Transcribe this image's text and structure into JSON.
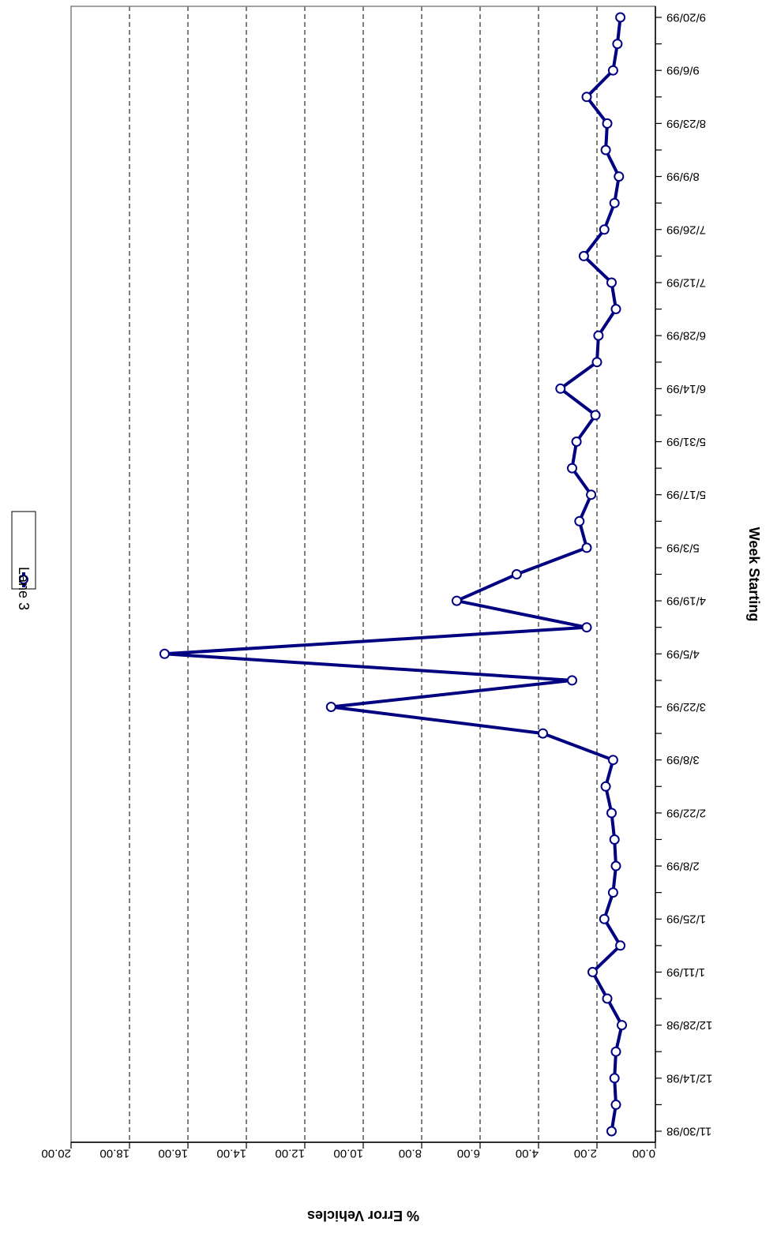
{
  "chart_data": {
    "type": "line",
    "title": "",
    "xlabel": "Week Starting",
    "ylabel": "% Error Vehicles",
    "ylim": [
      0,
      20
    ],
    "y_ticks": [
      "0.00",
      "2.00",
      "4.00",
      "6.00",
      "8.00",
      "10.00",
      "12.00",
      "14.00",
      "16.00",
      "18.00",
      "20.00"
    ],
    "x_tick_labels": [
      "11/30/98",
      "12/14/98",
      "12/28/98",
      "1/11/99",
      "1/25/99",
      "2/8/99",
      "2/22/99",
      "3/8/99",
      "3/22/99",
      "4/5/99",
      "4/19/99",
      "5/3/99",
      "5/17/99",
      "5/31/99",
      "6/14/99",
      "6/28/99",
      "7/12/99",
      "7/26/99",
      "8/9/99",
      "8/23/99",
      "9/6/99",
      "9/20/99"
    ],
    "grid": "dashed horizontal",
    "legend_position": "top",
    "orientation": "rotated 180 degrees",
    "series": [
      {
        "name": "Lane 3",
        "color": "#000080",
        "marker": "open-circle",
        "x": [
          "11/30/98",
          "12/7/98",
          "12/14/98",
          "12/21/98",
          "12/28/98",
          "1/4/99",
          "1/11/99",
          "1/18/99",
          "1/25/99",
          "2/1/99",
          "2/8/99",
          "2/15/99",
          "2/22/99",
          "3/1/99",
          "3/8/99",
          "3/15/99",
          "3/22/99",
          "3/29/99",
          "4/5/99",
          "4/12/99",
          "4/19/99",
          "4/26/99",
          "5/3/99",
          "5/10/99",
          "5/17/99",
          "5/24/99",
          "5/31/99",
          "6/7/99",
          "6/14/99",
          "6/21/99",
          "6/28/99",
          "7/5/99",
          "7/12/99",
          "7/19/99",
          "7/26/99",
          "8/2/99",
          "8/9/99",
          "8/16/99",
          "8/23/99",
          "8/30/99",
          "9/6/99",
          "9/13/99",
          "9/20/99"
        ],
        "values": [
          1.5,
          1.35,
          1.4,
          1.35,
          1.15,
          1.65,
          2.15,
          1.2,
          1.75,
          1.45,
          1.35,
          1.4,
          1.5,
          1.7,
          1.45,
          3.85,
          11.1,
          2.85,
          16.8,
          2.35,
          6.8,
          4.75,
          2.35,
          2.6,
          2.2,
          2.85,
          2.7,
          2.05,
          3.25,
          2.0,
          1.95,
          1.35,
          1.5,
          2.45,
          1.75,
          1.4,
          1.25,
          1.7,
          1.65,
          2.35,
          1.45,
          1.3,
          1.2
        ]
      }
    ]
  }
}
